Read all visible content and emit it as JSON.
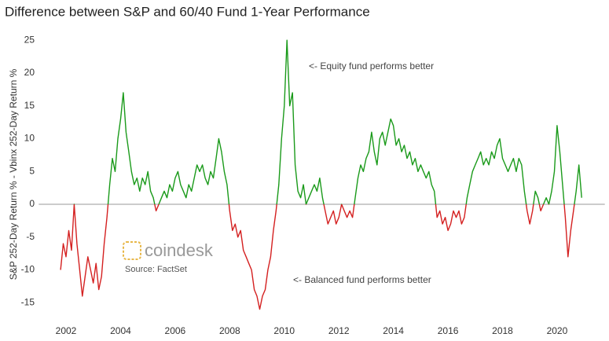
{
  "chart_data": {
    "type": "line",
    "title": "Difference between S&P and 60/40 Fund 1-Year Performance",
    "ylabel": "S&P 252-Day Return % - Vbinx 252-Day Return %",
    "annotations": [
      "<- Equity fund performs better",
      "<- Balanced fund performs better"
    ],
    "brand": "coindesk",
    "source": "Source: FactSet",
    "color_above": "#1a9a1a",
    "color_below": "#d42020",
    "baseline_color": "#999999",
    "xlim": [
      2001,
      2021.75
    ],
    "xticks": [
      2002,
      2004,
      2006,
      2008,
      2010,
      2012,
      2014,
      2016,
      2018,
      2020
    ],
    "ylim": [
      -17,
      26.5
    ],
    "yticks": [
      -15,
      -10,
      -5,
      0,
      5,
      10,
      15,
      20,
      25
    ],
    "x": [
      2001.8,
      2001.9,
      2002.0,
      2002.1,
      2002.2,
      2002.3,
      2002.4,
      2002.5,
      2002.6,
      2002.7,
      2002.8,
      2002.9,
      2003.0,
      2003.1,
      2003.2,
      2003.3,
      2003.4,
      2003.5,
      2003.6,
      2003.7,
      2003.8,
      2003.9,
      2004.0,
      2004.1,
      2004.2,
      2004.3,
      2004.4,
      2004.5,
      2004.6,
      2004.7,
      2004.8,
      2004.9,
      2005.0,
      2005.1,
      2005.2,
      2005.3,
      2005.4,
      2005.5,
      2005.6,
      2005.7,
      2005.8,
      2005.9,
      2006.0,
      2006.1,
      2006.2,
      2006.3,
      2006.4,
      2006.5,
      2006.6,
      2006.7,
      2006.8,
      2006.9,
      2007.0,
      2007.1,
      2007.2,
      2007.3,
      2007.4,
      2007.5,
      2007.6,
      2007.7,
      2007.8,
      2007.9,
      2008.0,
      2008.1,
      2008.2,
      2008.3,
      2008.4,
      2008.5,
      2008.6,
      2008.7,
      2008.8,
      2008.9,
      2009.0,
      2009.1,
      2009.2,
      2009.3,
      2009.4,
      2009.5,
      2009.6,
      2009.7,
      2009.8,
      2009.9,
      2010.0,
      2010.1,
      2010.2,
      2010.3,
      2010.4,
      2010.5,
      2010.6,
      2010.7,
      2010.8,
      2010.9,
      2011.0,
      2011.1,
      2011.2,
      2011.3,
      2011.4,
      2011.5,
      2011.6,
      2011.7,
      2011.8,
      2011.9,
      2012.0,
      2012.1,
      2012.2,
      2012.3,
      2012.4,
      2012.5,
      2012.6,
      2012.7,
      2012.8,
      2012.9,
      2013.0,
      2013.1,
      2013.2,
      2013.3,
      2013.4,
      2013.5,
      2013.6,
      2013.7,
      2013.8,
      2013.9,
      2014.0,
      2014.1,
      2014.2,
      2014.3,
      2014.4,
      2014.5,
      2014.6,
      2014.7,
      2014.8,
      2014.9,
      2015.0,
      2015.1,
      2015.2,
      2015.3,
      2015.4,
      2015.5,
      2015.6,
      2015.7,
      2015.8,
      2015.9,
      2016.0,
      2016.1,
      2016.2,
      2016.3,
      2016.4,
      2016.5,
      2016.6,
      2016.7,
      2016.8,
      2016.9,
      2017.0,
      2017.1,
      2017.2,
      2017.3,
      2017.4,
      2017.5,
      2017.6,
      2017.7,
      2017.8,
      2017.9,
      2018.0,
      2018.1,
      2018.2,
      2018.3,
      2018.4,
      2018.5,
      2018.6,
      2018.7,
      2018.8,
      2018.9,
      2019.0,
      2019.1,
      2019.2,
      2019.3,
      2019.4,
      2019.5,
      2019.6,
      2019.7,
      2019.8,
      2019.9,
      2020.0,
      2020.1,
      2020.2,
      2020.3,
      2020.4,
      2020.5,
      2020.6,
      2020.7,
      2020.8,
      2020.9
    ],
    "values": [
      -10,
      -6,
      -8,
      -4,
      -7,
      0,
      -6,
      -10,
      -14,
      -11,
      -8,
      -10,
      -12,
      -9,
      -13,
      -11,
      -6,
      -2,
      3,
      7,
      5,
      10,
      13,
      17,
      11,
      8,
      5,
      3,
      4,
      2,
      4,
      3,
      5,
      2,
      1,
      -1,
      0,
      1,
      2,
      1,
      3,
      2,
      4,
      5,
      3,
      2,
      1,
      3,
      2,
      4,
      6,
      5,
      6,
      4,
      3,
      5,
      4,
      7,
      10,
      8,
      5,
      3,
      -1,
      -4,
      -3,
      -5,
      -4,
      -7,
      -8,
      -9,
      -10,
      -13,
      -14,
      -16,
      -14,
      -13,
      -10,
      -8,
      -4,
      -1,
      3,
      10,
      15,
      25,
      15,
      17,
      6,
      2,
      1,
      3,
      0,
      1,
      2,
      3,
      2,
      4,
      1,
      -1,
      -3,
      -2,
      -1,
      -3,
      -2,
      0,
      -1,
      -2,
      -1,
      -2,
      1,
      4,
      6,
      5,
      7,
      8,
      11,
      8,
      6,
      10,
      11,
      9,
      11,
      13,
      12,
      9,
      10,
      8,
      9,
      7,
      8,
      6,
      7,
      5,
      6,
      5,
      4,
      5,
      3,
      2,
      -2,
      -1,
      -3,
      -2,
      -4,
      -3,
      -1,
      -2,
      -1,
      -3,
      -2,
      1,
      3,
      5,
      6,
      7,
      8,
      6,
      7,
      6,
      8,
      7,
      9,
      10,
      7,
      6,
      5,
      6,
      7,
      5,
      7,
      6,
      2,
      -1,
      -3,
      -1,
      2,
      1,
      -1,
      0,
      1,
      0,
      2,
      5,
      12,
      8,
      3,
      -2,
      -8,
      -4,
      -1,
      2,
      6,
      1
    ]
  }
}
